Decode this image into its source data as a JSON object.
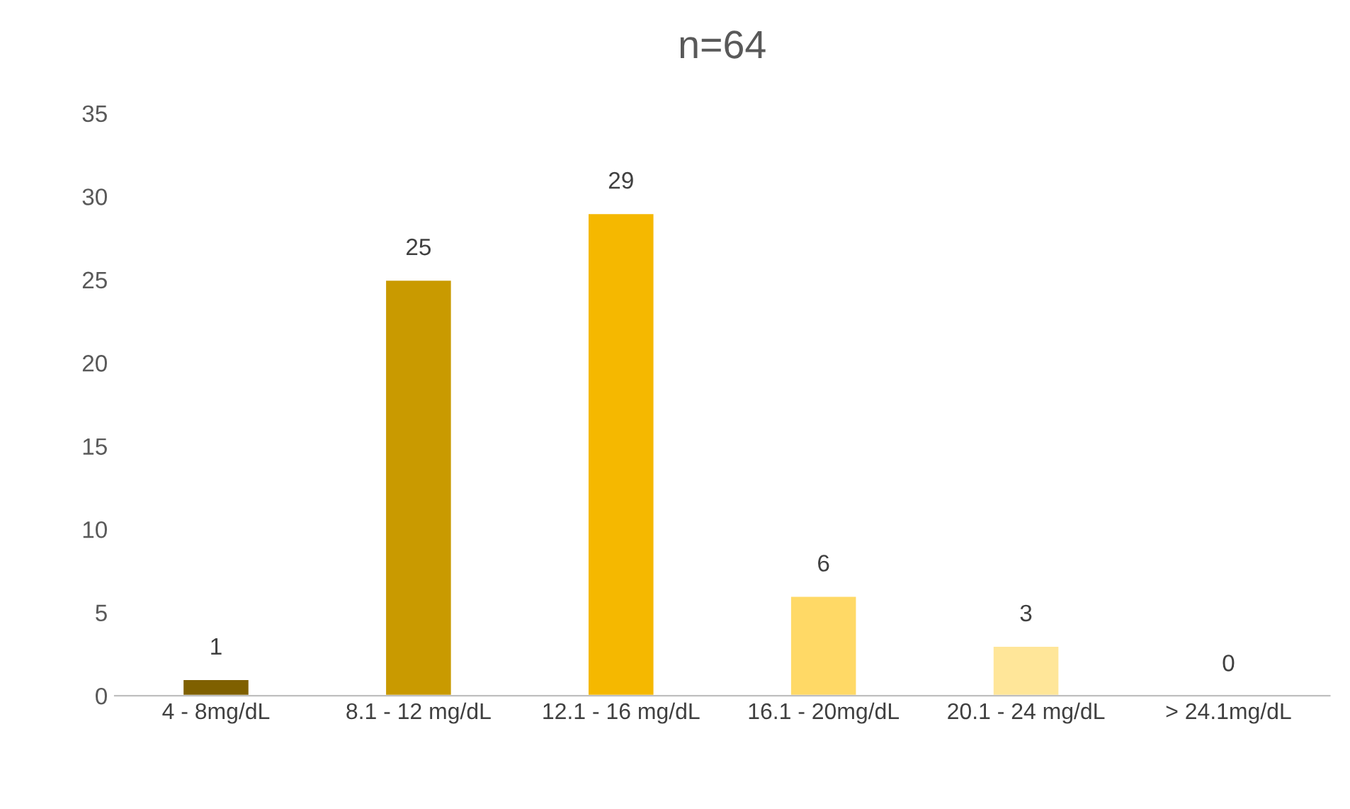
{
  "chart_data": {
    "type": "bar",
    "title": "n=64",
    "categories": [
      "4 - 8mg/dL",
      "8.1 - 12 mg/dL",
      "12.1 - 16 mg/dL",
      "16.1 - 20mg/dL",
      "20.1 - 24 mg/dL",
      "> 24.1mg/dL"
    ],
    "values": [
      1,
      25,
      29,
      6,
      3,
      0
    ],
    "colors": [
      "#7f6000",
      "#c99a00",
      "#f5b800",
      "#ffd966",
      "#ffe699",
      null
    ],
    "ylim": [
      0,
      35
    ],
    "yticks": [
      0,
      5,
      10,
      15,
      20,
      25,
      30,
      35
    ],
    "grid": false,
    "data_labels": true
  }
}
